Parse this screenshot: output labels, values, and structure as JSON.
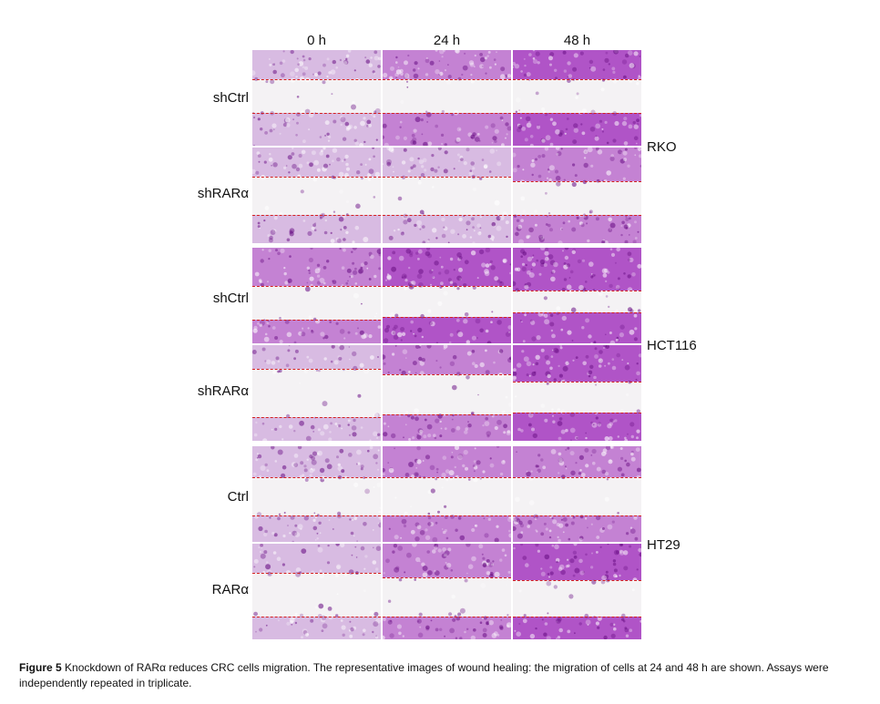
{
  "figure": {
    "time_points": [
      "0 h",
      "24 h",
      "48 h"
    ],
    "rows": [
      {
        "condition": "shCtrl"
      },
      {
        "condition": "shRARα"
      },
      {
        "condition": "shCtrl"
      },
      {
        "condition": "shRARα"
      },
      {
        "condition": "Ctrl"
      },
      {
        "condition": "RARα"
      }
    ],
    "cell_lines": [
      "RKO",
      "HCT116",
      "HT29"
    ],
    "stain_colors": {
      "light": "#cfa8dc",
      "medium": "#b45cc8",
      "dark": "#9a1fb8",
      "wound_line": "#d42020"
    }
  },
  "caption": {
    "label": "Figure 5",
    "text": " Knockdown of RARα reduces CRC cells migration. The representative images of wound healing: the migration of cells at 24 and 48 h are shown. Assays were independently repeated in triplicate."
  }
}
